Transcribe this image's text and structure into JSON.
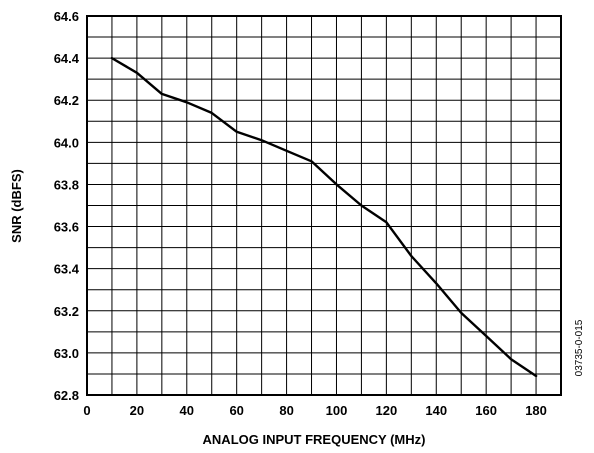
{
  "chart_data": {
    "type": "line",
    "title": "",
    "xlabel": "ANALOG INPUT FREQUENCY (MHz)",
    "ylabel": "SNR (dBFS)",
    "xlim": [
      0,
      190
    ],
    "ylim": [
      62.8,
      64.6
    ],
    "xticks": [
      0,
      20,
      40,
      60,
      80,
      100,
      120,
      140,
      160,
      180
    ],
    "yticks": [
      62.8,
      63.0,
      63.2,
      63.4,
      63.6,
      63.8,
      64.0,
      64.2,
      64.4,
      64.6
    ],
    "xtick_labels": [
      "0",
      "20",
      "40",
      "60",
      "80",
      "100",
      "120",
      "140",
      "160",
      "180"
    ],
    "ytick_labels": [
      "62.8",
      "63.0",
      "63.2",
      "63.4",
      "63.6",
      "63.8",
      "64.0",
      "64.2",
      "64.4",
      "64.6"
    ],
    "grid": true,
    "grid_x_step": 10,
    "grid_y_step": 0.1,
    "series": [
      {
        "name": "",
        "x": [
          10,
          20,
          30,
          40,
          50,
          60,
          70,
          80,
          90,
          100,
          110,
          120,
          130,
          140,
          150,
          160,
          170,
          180
        ],
        "y": [
          64.4,
          64.33,
          64.23,
          64.19,
          64.14,
          64.05,
          64.01,
          63.96,
          63.91,
          63.8,
          63.7,
          63.62,
          63.46,
          63.33,
          63.19,
          63.08,
          62.97,
          62.89
        ]
      }
    ],
    "figure_id": "03735-0-015"
  }
}
